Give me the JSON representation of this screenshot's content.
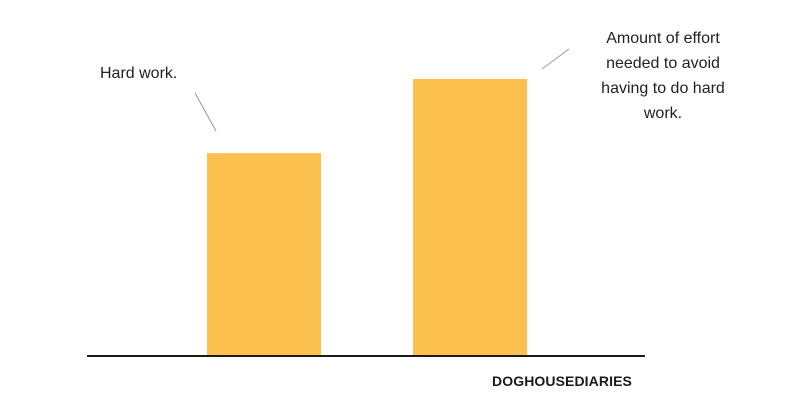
{
  "chart_data": {
    "type": "bar",
    "categories": [
      "",
      ""
    ],
    "values": [
      49,
      67
    ],
    "ylim": [
      0,
      100
    ],
    "title": "",
    "xlabel": "",
    "ylabel": "",
    "grid": false,
    "bar_color": "#FCC04E",
    "axis_color": "#1a1a1a",
    "annotations": [
      {
        "text": "Hard work.",
        "target_bar": 0
      },
      {
        "text": "Amount of effort needed to avoid having to do hard work.",
        "target_bar": 1
      }
    ]
  },
  "credit": "DOGHOUSEDIARIES"
}
